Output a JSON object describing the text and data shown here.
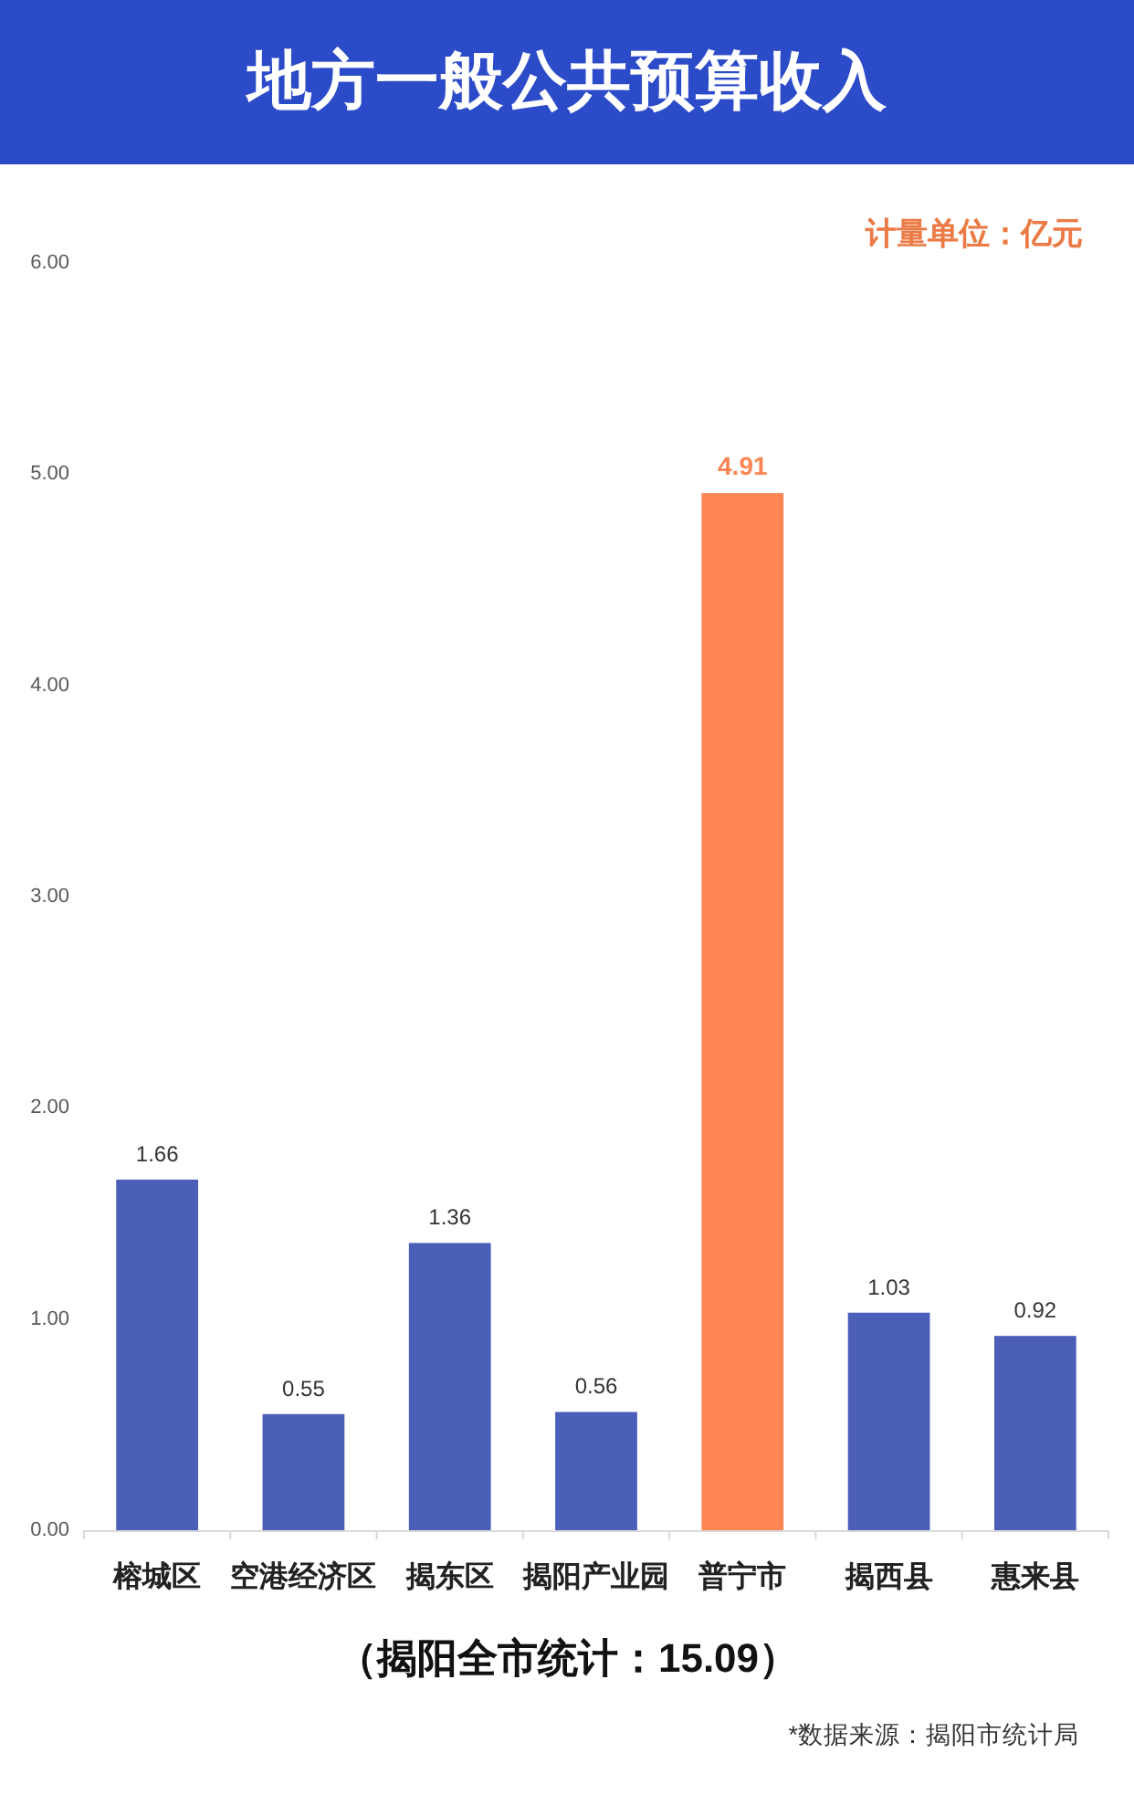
{
  "chart_data": {
    "type": "bar",
    "title": "地方一般公共预算收入",
    "categories": [
      "榕城区",
      "空港经济区",
      "揭东区",
      "揭阳产业园",
      "普宁市",
      "揭西县",
      "惠来县"
    ],
    "values": [
      1.66,
      0.55,
      1.36,
      0.56,
      4.91,
      1.03,
      0.92
    ],
    "colors": [
      "#4b5fb9",
      "#4b5fb9",
      "#4b5fb9",
      "#4b5fb9",
      "#ff8553",
      "#4b5fb9",
      "#4b5fb9"
    ],
    "ylim": [
      0,
      6
    ],
    "yticks": [
      {
        "value": 0,
        "label": "0.00"
      },
      {
        "value": 1,
        "label": "1.00"
      },
      {
        "value": 2,
        "label": "2.00"
      },
      {
        "value": 3,
        "label": "3.00"
      },
      {
        "value": 4,
        "label": "4.00"
      },
      {
        "value": 5,
        "label": "5.00"
      },
      {
        "value": 6,
        "label": "6.00"
      }
    ],
    "data_labels": true,
    "annotations": [
      "计量单位：亿元",
      "（揭阳全市统计：15.09）",
      "*数据来源：揭阳市统计局"
    ]
  }
}
